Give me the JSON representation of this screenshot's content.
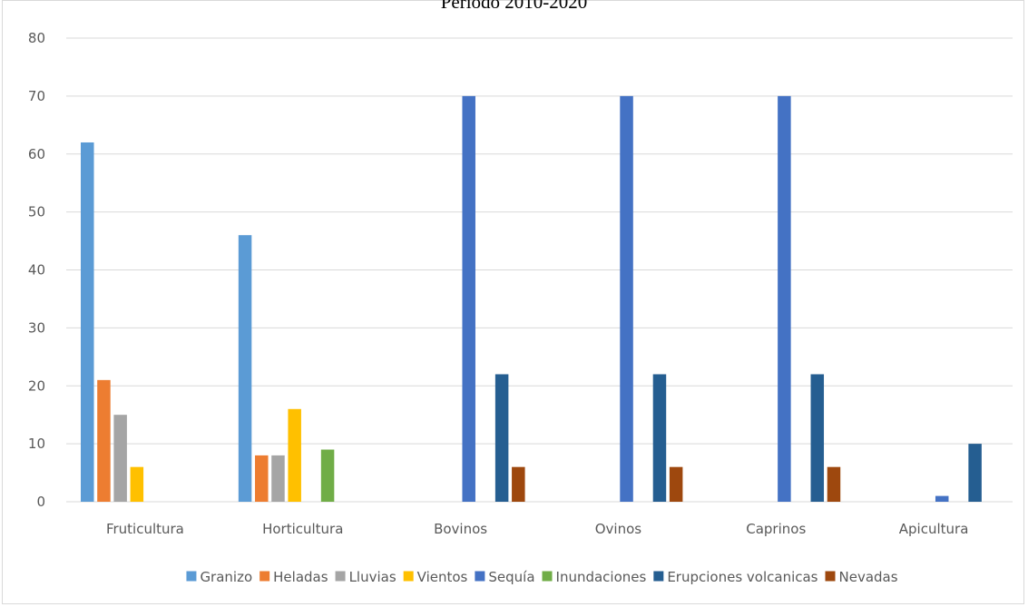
{
  "chart_data": {
    "type": "bar",
    "title": "Periodo 2010-2020",
    "xlabel": "",
    "ylabel": "",
    "ylim": [
      0,
      80
    ],
    "yticks": [
      0,
      10,
      20,
      30,
      40,
      50,
      60,
      70,
      80
    ],
    "grid": true,
    "legend_position": "bottom",
    "categories": [
      "Fruticultura",
      "Horticultura",
      "Bovinos",
      "Ovinos",
      "Caprinos",
      "Apicultura"
    ],
    "series": [
      {
        "name": "Granizo",
        "color": "#5b9bd5",
        "values": [
          62,
          46,
          0,
          0,
          0,
          0
        ]
      },
      {
        "name": "Heladas",
        "color": "#ed7d31",
        "values": [
          21,
          8,
          0,
          0,
          0,
          0
        ]
      },
      {
        "name": "Lluvias",
        "color": "#a5a5a5",
        "values": [
          15,
          8,
          0,
          0,
          0,
          0
        ]
      },
      {
        "name": "Vientos",
        "color": "#ffc000",
        "values": [
          6,
          16,
          0,
          0,
          0,
          0
        ]
      },
      {
        "name": "Sequía",
        "color": "#4472c4",
        "values": [
          0,
          0,
          70,
          70,
          70,
          1
        ]
      },
      {
        "name": "Inundaciones",
        "color": "#70ad47",
        "values": [
          0,
          9,
          0,
          0,
          0,
          0
        ]
      },
      {
        "name": "Erupciones volcanicas",
        "color": "#255e91",
        "values": [
          0,
          0,
          22,
          22,
          22,
          10
        ]
      },
      {
        "name": "Nevadas",
        "color": "#9e480e",
        "values": [
          0,
          0,
          6,
          6,
          6,
          0
        ]
      }
    ]
  }
}
